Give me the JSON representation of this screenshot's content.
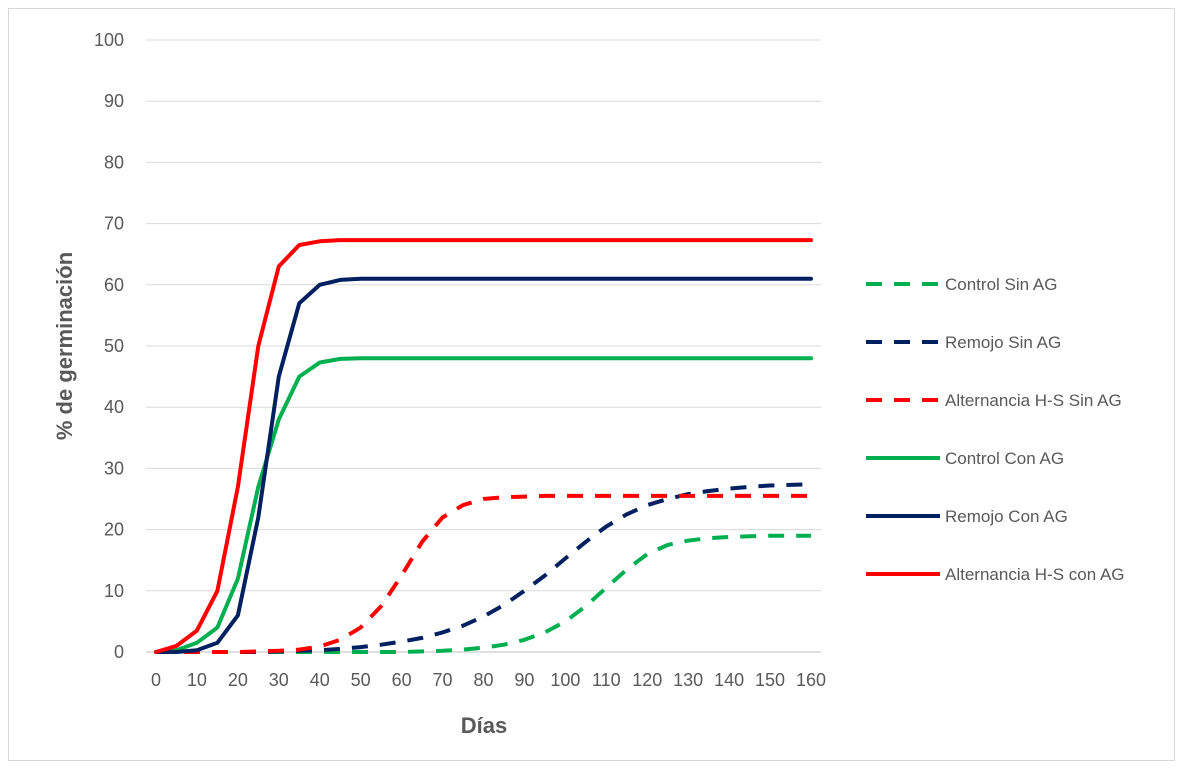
{
  "chart_data": {
    "type": "line",
    "title": "",
    "xlabel": "Días",
    "ylabel": "% de germinación",
    "xlim": [
      0,
      160
    ],
    "ylim": [
      0,
      100
    ],
    "x_ticks": [
      "0",
      "10",
      "20",
      "30",
      "40",
      "50",
      "60",
      "70",
      "80",
      "90",
      "100",
      "110",
      "120",
      "130",
      "140",
      "150",
      "160"
    ],
    "y_ticks": [
      "0",
      "10",
      "20",
      "30",
      "40",
      "50",
      "60",
      "70",
      "80",
      "90",
      "100"
    ],
    "grid": "horizontal",
    "legend_position": "right",
    "x": [
      0,
      5,
      10,
      15,
      20,
      25,
      30,
      35,
      40,
      45,
      50,
      55,
      60,
      65,
      70,
      75,
      80,
      85,
      90,
      95,
      100,
      105,
      110,
      115,
      120,
      125,
      130,
      135,
      140,
      145,
      150,
      155,
      160
    ],
    "series": [
      {
        "name": "Control Sin AG",
        "color": "#00b050",
        "dash": true,
        "values": [
          0,
          0,
          0,
          0,
          0,
          0,
          0,
          0,
          0,
          0,
          0,
          0,
          0,
          0.1,
          0.2,
          0.4,
          0.7,
          1.2,
          2,
          3.2,
          5,
          7.5,
          10.5,
          13.5,
          16,
          17.5,
          18.2,
          18.6,
          18.8,
          18.9,
          19,
          19,
          19
        ]
      },
      {
        "name": "Remojo Sin AG",
        "color": "#002060",
        "dash": true,
        "values": [
          0,
          0,
          0,
          0,
          0,
          0,
          0.1,
          0.2,
          0.3,
          0.5,
          0.8,
          1.2,
          1.7,
          2.3,
          3.2,
          4.3,
          5.8,
          7.7,
          10,
          12.5,
          15.3,
          18,
          20.5,
          22.5,
          24,
          25,
          25.8,
          26.3,
          26.7,
          27,
          27.2,
          27.3,
          27.4
        ]
      },
      {
        "name": "Alternancia H-S Sin AG",
        "color": "#ff0000",
        "dash": true,
        "values": [
          0,
          0,
          0,
          0,
          0,
          0.1,
          0.2,
          0.4,
          0.9,
          2,
          4,
          7.5,
          12.5,
          18,
          22,
          24,
          25,
          25.3,
          25.4,
          25.5,
          25.5,
          25.5,
          25.5,
          25.5,
          25.5,
          25.5,
          25.5,
          25.5,
          25.5,
          25.5,
          25.5,
          25.5,
          25.5
        ]
      },
      {
        "name": "Control Con AG",
        "color": "#00b050",
        "dash": false,
        "values": [
          0,
          0.3,
          1.5,
          4,
          12,
          27,
          38,
          45,
          47.3,
          47.9,
          48,
          48,
          48,
          48,
          48,
          48,
          48,
          48,
          48,
          48,
          48,
          48,
          48,
          48,
          48,
          48,
          48,
          48,
          48,
          48,
          48,
          48,
          48
        ]
      },
      {
        "name": "Remojo Con AG",
        "color": "#002060",
        "dash": false,
        "values": [
          0,
          0,
          0.3,
          1.5,
          6,
          22,
          45,
          57,
          60,
          60.8,
          61,
          61,
          61,
          61,
          61,
          61,
          61,
          61,
          61,
          61,
          61,
          61,
          61,
          61,
          61,
          61,
          61,
          61,
          61,
          61,
          61,
          61,
          61
        ]
      },
      {
        "name": "Alternancia H-S con AG",
        "color": "#ff0000",
        "dash": false,
        "values": [
          0,
          1,
          3.5,
          10,
          27,
          50,
          63,
          66.5,
          67.1,
          67.3,
          67.3,
          67.3,
          67.3,
          67.3,
          67.3,
          67.3,
          67.3,
          67.3,
          67.3,
          67.3,
          67.3,
          67.3,
          67.3,
          67.3,
          67.3,
          67.3,
          67.3,
          67.3,
          67.3,
          67.3,
          67.3,
          67.3,
          67.3
        ]
      }
    ]
  }
}
